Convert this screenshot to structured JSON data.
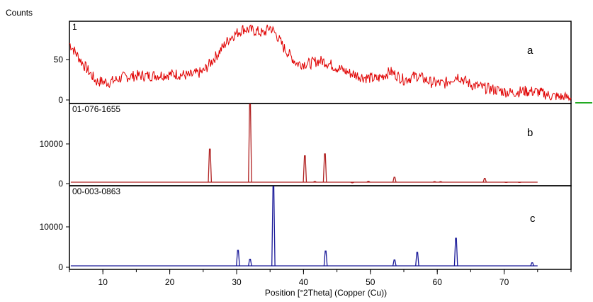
{
  "figure": {
    "y_axis_title": "Counts",
    "x_axis_title": "Position [°2Theta] (Copper (Cu))",
    "accent_marker_color": "#22aa22"
  },
  "chart_data": [
    {
      "type": "line",
      "panel_id": "1",
      "panel_letter": "a",
      "color": "#e00000",
      "xlim": [
        5,
        80
      ],
      "ylim": [
        0,
        92
      ],
      "y_ticks": [
        0,
        50
      ],
      "x": [
        5,
        7,
        9,
        11,
        13,
        15,
        17,
        19,
        21,
        23,
        25,
        27,
        29,
        31,
        33,
        34,
        35,
        36,
        37,
        39,
        41,
        42,
        43,
        45,
        47,
        49,
        51,
        53,
        55,
        57,
        59,
        61,
        63,
        65,
        67,
        69,
        71,
        73,
        75,
        77,
        79,
        80
      ],
      "y": [
        70,
        45,
        23,
        22,
        28,
        30,
        30,
        31,
        32,
        30,
        35,
        55,
        77,
        88,
        85,
        82,
        90,
        80,
        65,
        45,
        45,
        48,
        48,
        40,
        33,
        28,
        26,
        35,
        25,
        30,
        22,
        20,
        30,
        19,
        15,
        12,
        9,
        11,
        10,
        5,
        3,
        3
      ]
    },
    {
      "type": "line",
      "panel_id": "01-076-1655",
      "panel_letter": "b",
      "color": "#b02020",
      "xlim": [
        5,
        80
      ],
      "ylim": [
        0,
        20000
      ],
      "y_ticks": [
        0,
        10000
      ],
      "peaks_x": [
        26.0,
        32.0,
        40.2,
        41.7,
        43.2,
        47.3,
        49.7,
        53.6,
        59.6,
        60.5,
        67.1,
        70.3,
        72.3
      ],
      "peaks_y": [
        8700,
        20000,
        7000,
        550,
        7500,
        200,
        600,
        1600,
        500,
        500,
        1300,
        300,
        300
      ]
    },
    {
      "type": "line",
      "panel_id": "00-003-0863",
      "panel_letter": "c",
      "color": "#1a1a99",
      "xlim": [
        5,
        80
      ],
      "ylim": [
        0,
        20000
      ],
      "y_ticks": [
        0,
        10000
      ],
      "peaks_x": [
        30.2,
        32.0,
        35.5,
        43.3,
        53.6,
        57.0,
        62.8,
        74.2
      ],
      "peaks_y": [
        4200,
        2000,
        20000,
        4000,
        1800,
        3700,
        7200,
        1100
      ]
    }
  ]
}
